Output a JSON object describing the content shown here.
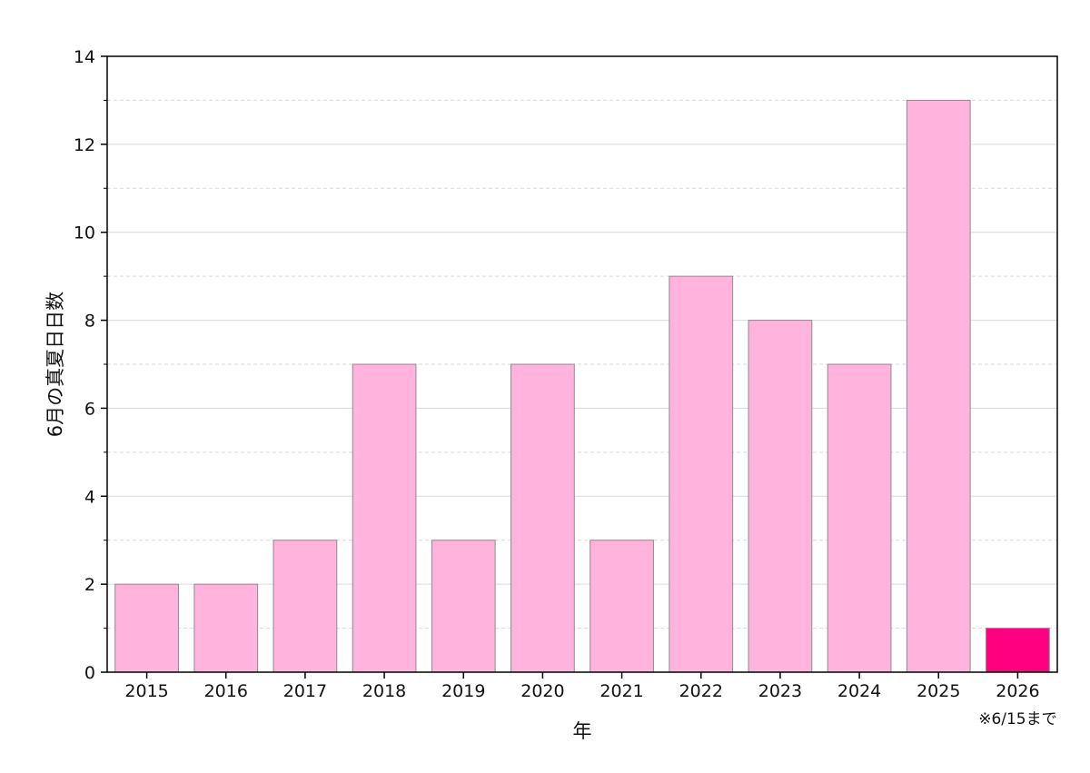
{
  "chart_data": {
    "type": "bar",
    "categories": [
      "2015",
      "2016",
      "2017",
      "2018",
      "2019",
      "2020",
      "2021",
      "2022",
      "2023",
      "2024",
      "2025",
      "2026"
    ],
    "values": [
      2,
      2,
      3,
      7,
      3,
      7,
      3,
      9,
      8,
      7,
      13,
      1
    ],
    "title": "",
    "xlabel": "年",
    "ylabel": "6月の真夏日日数",
    "ylim": [
      0,
      14
    ],
    "yticks": [
      0,
      2,
      4,
      6,
      8,
      10,
      12,
      14
    ],
    "grid": true,
    "legend": "none",
    "annotation": "※6/15まで",
    "colors": {
      "bar": "#FFB3DD",
      "highlight_bar": "#FF0080",
      "bar_border": "#8C8C8C",
      "axis": "#000000",
      "grid": "#D9D9D9"
    },
    "highlight_category": "2026"
  }
}
